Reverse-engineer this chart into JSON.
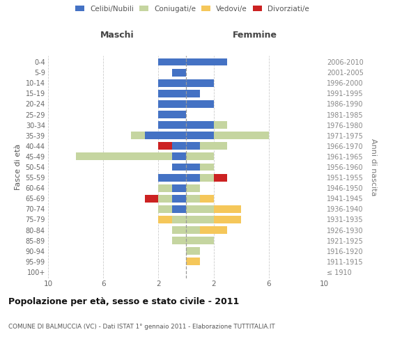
{
  "age_groups": [
    "100+",
    "95-99",
    "90-94",
    "85-89",
    "80-84",
    "75-79",
    "70-74",
    "65-69",
    "60-64",
    "55-59",
    "50-54",
    "45-49",
    "40-44",
    "35-39",
    "30-34",
    "25-29",
    "20-24",
    "15-19",
    "10-14",
    "5-9",
    "0-4"
  ],
  "birth_years": [
    "≤ 1910",
    "1911-1915",
    "1916-1920",
    "1921-1925",
    "1926-1930",
    "1931-1935",
    "1936-1940",
    "1941-1945",
    "1946-1950",
    "1951-1955",
    "1956-1960",
    "1961-1965",
    "1966-1970",
    "1971-1975",
    "1976-1980",
    "1981-1985",
    "1986-1990",
    "1991-1995",
    "1996-2000",
    "2001-2005",
    "2006-2010"
  ],
  "colors": {
    "celibi": "#4472C4",
    "coniugati": "#C5D5A0",
    "vedovi": "#F5C75A",
    "divorziati": "#CC2222"
  },
  "male": {
    "celibi": [
      0,
      0,
      0,
      0,
      0,
      0,
      1,
      1,
      1,
      2,
      1,
      1,
      1,
      3,
      2,
      2,
      2,
      2,
      2,
      1,
      2
    ],
    "coniugati": [
      0,
      0,
      0,
      1,
      1,
      1,
      1,
      1,
      1,
      0,
      0,
      7,
      0,
      1,
      0,
      0,
      0,
      0,
      0,
      0,
      0
    ],
    "vedovi": [
      0,
      0,
      0,
      0,
      0,
      1,
      0,
      0,
      0,
      0,
      0,
      0,
      0,
      0,
      0,
      0,
      0,
      0,
      0,
      0,
      0
    ],
    "divorziati": [
      0,
      0,
      0,
      0,
      0,
      0,
      0,
      1,
      0,
      0,
      0,
      0,
      1,
      0,
      0,
      0,
      0,
      0,
      0,
      0,
      0
    ]
  },
  "female": {
    "celibi": [
      0,
      0,
      0,
      0,
      0,
      0,
      0,
      0,
      0,
      1,
      1,
      0,
      1,
      2,
      2,
      0,
      2,
      1,
      2,
      0,
      3
    ],
    "coniugati": [
      0,
      0,
      1,
      2,
      1,
      2,
      2,
      1,
      1,
      1,
      1,
      2,
      2,
      4,
      1,
      0,
      0,
      0,
      0,
      0,
      0
    ],
    "vedovi": [
      0,
      1,
      0,
      0,
      2,
      2,
      2,
      1,
      0,
      0,
      0,
      0,
      0,
      0,
      0,
      0,
      0,
      0,
      0,
      0,
      0
    ],
    "divorziati": [
      0,
      0,
      0,
      0,
      0,
      0,
      0,
      0,
      0,
      1,
      0,
      0,
      0,
      0,
      0,
      0,
      0,
      0,
      0,
      0,
      0
    ]
  },
  "xlim": [
    -10,
    10
  ],
  "xticks": [
    -10,
    -6,
    -2,
    2,
    6,
    10
  ],
  "xticklabels": [
    "10",
    "6",
    "2",
    "2",
    "6",
    "10"
  ],
  "title": "Popolazione per età, sesso e stato civile - 2011",
  "subtitle": "COMUNE DI BALMUCCIA (VC) - Dati ISTAT 1° gennaio 2011 - Elaborazione TUTTITALIA.IT",
  "ylabel_left": "Fasce di età",
  "ylabel_right": "Anni di nascita",
  "maschi_label": "Maschi",
  "femmine_label": "Femmine",
  "legend_labels": [
    "Celibi/Nubili",
    "Coniugati/e",
    "Vedovi/e",
    "Divorziati/e"
  ],
  "background_color": "#FFFFFF"
}
